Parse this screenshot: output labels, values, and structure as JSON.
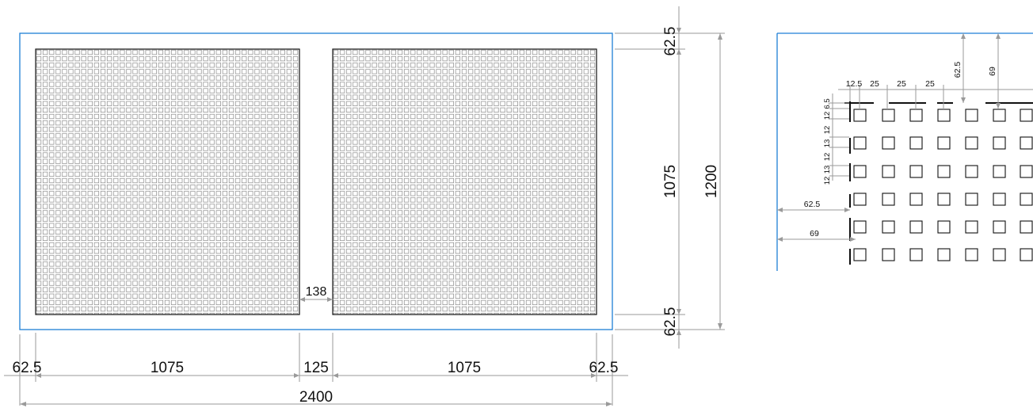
{
  "colors": {
    "sheet_outline": "#1e7fd6",
    "panel_outline": "#111111",
    "perforation": "#8a8a8a",
    "dimension_line": "#9a9a9a",
    "text": "#111111"
  },
  "main_view": {
    "bottom_dims": [
      "62.5",
      "1075",
      "125",
      "1075",
      "62.5"
    ],
    "overall_width": "2400",
    "right_dims": {
      "top_margin": "62.5",
      "panel_height": "1075",
      "bottom_margin": "62.5",
      "overall_height": "1200"
    },
    "gap_label": "138"
  },
  "detail_view": {
    "top_dims": [
      "12.5",
      "25",
      "25",
      "25"
    ],
    "left_dims": [
      "6.5",
      "12",
      "12",
      "13",
      "12",
      "13",
      "12"
    ],
    "vertical_offsets": [
      "62.5",
      "69"
    ],
    "horizontal_offsets": [
      "62.5",
      "69"
    ]
  }
}
